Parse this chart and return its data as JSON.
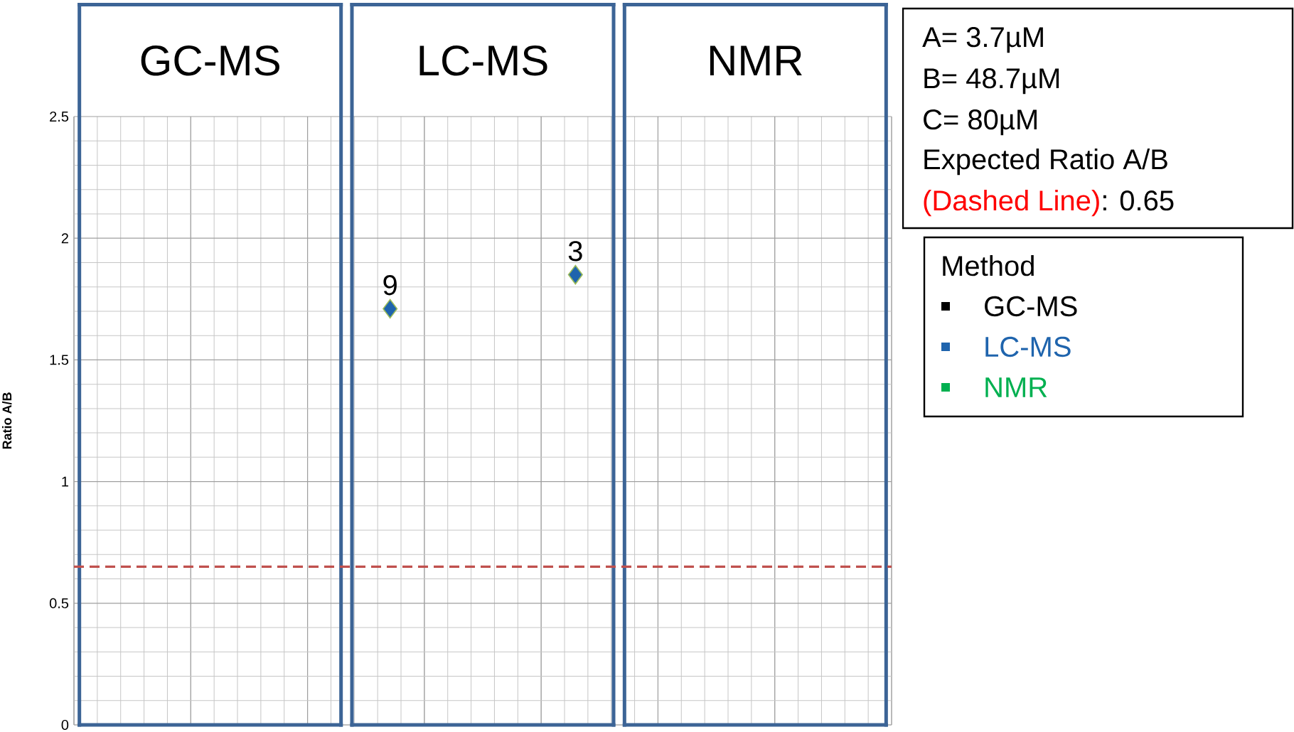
{
  "chart_data": {
    "type": "scatter",
    "ylabel": "Ratio A/B",
    "legend_title": "Method",
    "legend": "right",
    "marker": "diamond",
    "grid": true,
    "categories": [
      "GC-MS",
      "LC-MS",
      "NMR"
    ],
    "ylim": [
      0,
      2.5
    ],
    "yticks": [
      0,
      0.5,
      1,
      1.5,
      2,
      2.5
    ],
    "series": [
      {
        "name": "GC-MS",
        "color": "#000000",
        "values": [
          null,
          null,
          null
        ]
      },
      {
        "name": "LC-MS",
        "color": "#1f64ad",
        "x": [
          "LC-MS",
          "LC-MS"
        ],
        "values": [
          1.71,
          1.85
        ]
      },
      {
        "name": "NMR",
        "color": "#00b050",
        "values": [
          null,
          null,
          null
        ]
      }
    ],
    "ref_lines": [
      {
        "axis": "y",
        "value": 0.65,
        "color": "#c0504d",
        "line_style": "dashed"
      }
    ],
    "annotations": [
      "A= 3.7µM",
      "B= 48.7µM",
      "C= 80µM",
      "Expected Ratio A/B",
      "(Dashed Line)",
      ": 0.65",
      "9",
      "3"
    ]
  }
}
